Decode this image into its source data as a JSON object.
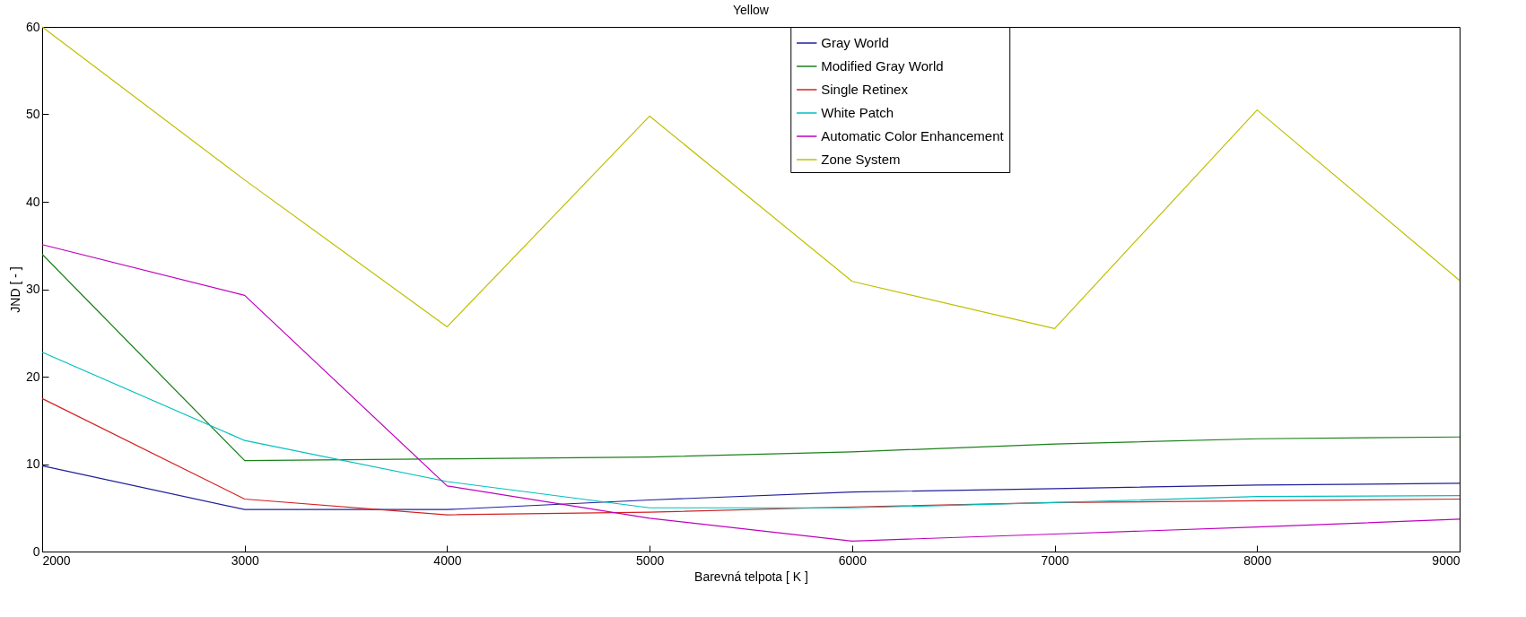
{
  "chart_data": {
    "type": "line",
    "title": "Yellow",
    "xlabel": "Barevná telpota [ K ]",
    "ylabel": "JND [ - ]",
    "x": [
      2000,
      3000,
      4000,
      5000,
      6000,
      7000,
      8000,
      9000
    ],
    "series": [
      {
        "name": "Gray World",
        "color": "#20209a",
        "values": [
          9.8,
          4.8,
          4.8,
          5.9,
          6.8,
          7.2,
          7.6,
          7.8
        ]
      },
      {
        "name": "Modified Gray World",
        "color": "#1a801a",
        "values": [
          34,
          10.4,
          10.6,
          10.8,
          11.4,
          12.3,
          12.9,
          13.1
        ]
      },
      {
        "name": "Single Retinex",
        "color": "#d42020",
        "values": [
          17.5,
          6.0,
          4.2,
          4.5,
          5.1,
          5.6,
          5.8,
          6.0
        ]
      },
      {
        "name": "White Patch",
        "color": "#00bfbf",
        "values": [
          22.8,
          12.7,
          8.0,
          5.0,
          5.0,
          5.6,
          6.3,
          6.4
        ]
      },
      {
        "name": "Automatic Color Enhancement",
        "color": "#bf00bf",
        "values": [
          35.1,
          29.3,
          7.5,
          3.8,
          1.2,
          2.0,
          2.8,
          3.7
        ]
      },
      {
        "name": "Zone System",
        "color": "#bfbf00",
        "values": [
          60,
          42.5,
          25.7,
          49.8,
          30.9,
          25.5,
          50.5,
          31
        ]
      }
    ],
    "xlim": [
      2000,
      9000
    ],
    "xticks": [
      2000,
      3000,
      4000,
      5000,
      6000,
      7000,
      8000,
      9000
    ],
    "ylim": [
      0,
      60
    ],
    "yticks": [
      0,
      10,
      20,
      30,
      40,
      50,
      60
    ],
    "grid": false,
    "legend": "top right",
    "marker": "none",
    "line_style": "solid"
  }
}
